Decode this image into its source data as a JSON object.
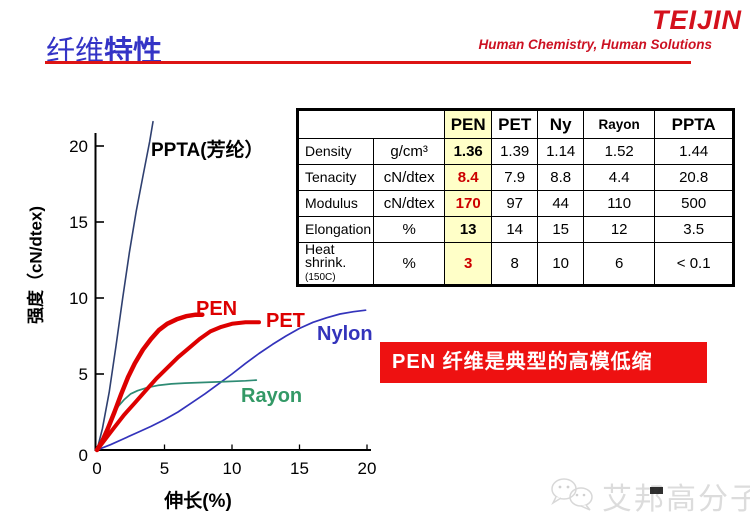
{
  "slide": {
    "title_light": "纤维",
    "title_bold": "特性",
    "logo": {
      "brand": "TEIJIN",
      "tagline": "Human Chemistry, Human Solutions"
    },
    "banner_text": "PEN 纤维是典型的高模低缩",
    "watermark_text": "艾邦高分子"
  },
  "colors": {
    "title_blue": "#3434c6",
    "accent_red": "#dd1414",
    "banner_bg": "#ee1111",
    "banner_fg": "#ffffff",
    "pen_column_bg": "#ffffc8",
    "pen_red_value": "#cc0000"
  },
  "table": {
    "columns": [
      {
        "label": "",
        "span": 2
      },
      {
        "label": "PEN",
        "highlight": true
      },
      {
        "label": "PET"
      },
      {
        "label": "Ny"
      },
      {
        "label": "Rayon",
        "small": true
      },
      {
        "label": "PPTA"
      }
    ],
    "rows": [
      {
        "property": "Density",
        "note": "",
        "unit": "g/cm³",
        "values": [
          "1.36",
          "1.39",
          "1.14",
          "1.52",
          "1.44"
        ],
        "pen_color": "#000000"
      },
      {
        "property": "Tenacity",
        "note": "",
        "unit": "cN/dtex",
        "values": [
          "8.4",
          "7.9",
          "8.8",
          "4.4",
          "20.8"
        ],
        "pen_color": "#cc0000"
      },
      {
        "property": "Modulus",
        "note": "",
        "unit": "cN/dtex",
        "values": [
          "170",
          "97",
          "44",
          "110",
          "500"
        ],
        "pen_color": "#cc0000"
      },
      {
        "property": "Elongation",
        "note": "",
        "unit": "%",
        "values": [
          "13",
          "14",
          "15",
          "12",
          "3.5"
        ],
        "pen_color": "#000000"
      },
      {
        "property": "Heat shrink.",
        "note": "(150C)",
        "unit": "%",
        "values": [
          "3",
          "8",
          "10",
          "6",
          "< 0.1"
        ],
        "pen_color": "#cc0000"
      }
    ]
  },
  "chart_data": {
    "type": "line",
    "title": "",
    "xlabel": "伸长(%)",
    "ylabel": "强度（cN/dtex)",
    "xlim": [
      0,
      20.5
    ],
    "ylim": [
      0,
      21.6
    ],
    "x_ticks": [
      0,
      5,
      10,
      15,
      20
    ],
    "y_ticks": [
      20,
      15,
      10,
      5,
      0
    ],
    "grid": false,
    "legend_position": "inline-labels",
    "series": [
      {
        "name": "PPTA(芳纶）",
        "color": "#2f4070",
        "label_color": "#000000",
        "width": 1.6,
        "points": [
          [
            0,
            0
          ],
          [
            0.4,
            1.4
          ],
          [
            0.9,
            3.8
          ],
          [
            1.4,
            6.8
          ],
          [
            1.9,
            10
          ],
          [
            2.4,
            13
          ],
          [
            2.9,
            15.7
          ],
          [
            3.4,
            18
          ],
          [
            3.9,
            20.3
          ],
          [
            4.15,
            21.6
          ]
        ]
      },
      {
        "name": "Nylon",
        "color": "#3333bb",
        "label_color": "#3333bb",
        "width": 1.7,
        "points": [
          [
            0,
            0
          ],
          [
            1,
            0.35
          ],
          [
            2,
            0.75
          ],
          [
            3,
            1.15
          ],
          [
            4,
            1.55
          ],
          [
            5,
            2
          ],
          [
            6,
            2.5
          ],
          [
            7,
            3.1
          ],
          [
            8,
            3.7
          ],
          [
            9,
            4.35
          ],
          [
            10,
            5
          ],
          [
            11,
            5.7
          ],
          [
            12,
            6.35
          ],
          [
            13,
            6.95
          ],
          [
            14,
            7.5
          ],
          [
            15,
            8
          ],
          [
            16,
            8.4
          ],
          [
            17,
            8.7
          ],
          [
            18,
            8.95
          ],
          [
            19,
            9.1
          ],
          [
            19.9,
            9.2
          ]
        ]
      },
      {
        "name": "Rayon",
        "color": "#2e8b74",
        "label_color": "#339966",
        "width": 1.7,
        "points": [
          [
            0,
            0
          ],
          [
            0.4,
            0.8
          ],
          [
            0.8,
            1.6
          ],
          [
            1.2,
            2.3
          ],
          [
            1.6,
            2.9
          ],
          [
            2,
            3.3
          ],
          [
            2.5,
            3.7
          ],
          [
            3,
            3.9
          ],
          [
            3.7,
            4.1
          ],
          [
            4.5,
            4.25
          ],
          [
            5.5,
            4.35
          ],
          [
            6.5,
            4.4
          ],
          [
            8,
            4.45
          ],
          [
            9.5,
            4.5
          ],
          [
            11,
            4.55
          ],
          [
            11.8,
            4.6
          ]
        ]
      },
      {
        "name": "PEN",
        "color": "#dd0000",
        "label_color": "#dd0000",
        "width": 4.5,
        "points": [
          [
            0,
            0
          ],
          [
            0.4,
            0.6
          ],
          [
            0.8,
            1.4
          ],
          [
            1.3,
            2.5
          ],
          [
            1.8,
            3.7
          ],
          [
            2.3,
            4.8
          ],
          [
            2.8,
            5.7
          ],
          [
            3.4,
            6.6
          ],
          [
            4,
            7.3
          ],
          [
            4.6,
            7.9
          ],
          [
            5.2,
            8.3
          ],
          [
            5.9,
            8.6
          ],
          [
            6.6,
            8.8
          ],
          [
            7.3,
            8.9
          ],
          [
            7.8,
            8.9
          ]
        ]
      },
      {
        "name": "PET",
        "color": "#dd0000",
        "label_color": "#dd0000",
        "width": 4,
        "points": [
          [
            0,
            0
          ],
          [
            0.6,
            0.7
          ],
          [
            1.3,
            1.5
          ],
          [
            2,
            2.3
          ],
          [
            2.8,
            3.1
          ],
          [
            3.6,
            3.9
          ],
          [
            4.4,
            4.7
          ],
          [
            5.2,
            5.4
          ],
          [
            6,
            6.1
          ],
          [
            6.8,
            6.7
          ],
          [
            7.6,
            7.3
          ],
          [
            8.4,
            7.8
          ],
          [
            9.2,
            8.1
          ],
          [
            10,
            8.3
          ],
          [
            11,
            8.4
          ],
          [
            12,
            8.4
          ]
        ]
      }
    ]
  }
}
